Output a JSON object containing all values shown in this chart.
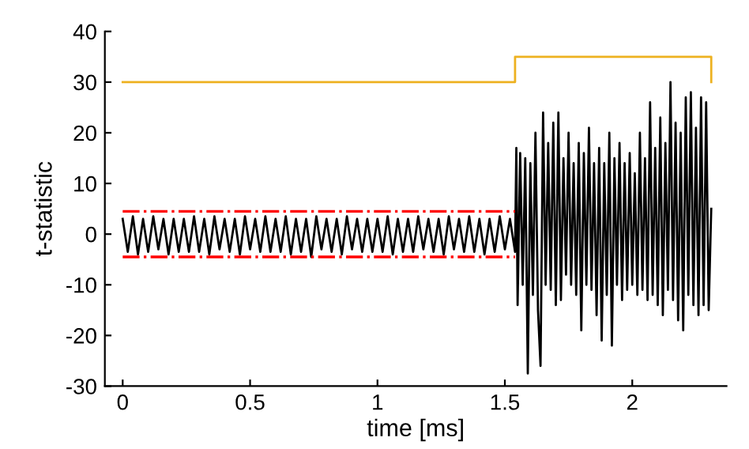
{
  "chart_data": {
    "type": "line",
    "xlabel": "time [ms]",
    "ylabel": "t-statistic",
    "xlim": [
      -0.07,
      2.37
    ],
    "ylim": [
      -30,
      40
    ],
    "xticks": [
      0,
      0.5,
      1,
      1.5,
      2
    ],
    "yticks": [
      -30,
      -20,
      -10,
      0,
      10,
      20,
      30,
      40
    ],
    "grid": false,
    "marker": "none",
    "series": [
      {
        "color": "#000000",
        "line_style": "solid",
        "x": [
          0,
          0.02,
          0.04,
          0.06,
          0.08,
          0.1,
          0.12,
          0.14,
          0.16,
          0.18,
          0.2,
          0.22,
          0.24,
          0.26,
          0.28,
          0.3,
          0.32,
          0.34,
          0.36,
          0.38,
          0.4,
          0.42,
          0.44,
          0.46,
          0.48,
          0.5,
          0.52,
          0.54,
          0.56,
          0.58,
          0.6,
          0.62,
          0.64,
          0.66,
          0.68,
          0.7,
          0.72,
          0.74,
          0.76,
          0.78,
          0.8,
          0.82,
          0.84,
          0.86,
          0.88,
          0.9,
          0.92,
          0.94,
          0.96,
          0.98,
          1.0,
          1.02,
          1.04,
          1.06,
          1.08,
          1.1,
          1.12,
          1.14,
          1.16,
          1.18,
          1.2,
          1.22,
          1.24,
          1.26,
          1.28,
          1.3,
          1.32,
          1.34,
          1.36,
          1.38,
          1.4,
          1.42,
          1.44,
          1.46,
          1.48,
          1.5,
          1.52,
          1.54,
          1.545,
          1.55,
          1.56,
          1.57,
          1.58,
          1.59,
          1.6,
          1.61,
          1.62,
          1.63,
          1.64,
          1.65,
          1.66,
          1.67,
          1.68,
          1.69,
          1.7,
          1.71,
          1.72,
          1.73,
          1.74,
          1.75,
          1.76,
          1.77,
          1.78,
          1.79,
          1.8,
          1.81,
          1.82,
          1.83,
          1.84,
          1.85,
          1.86,
          1.87,
          1.88,
          1.89,
          1.9,
          1.91,
          1.92,
          1.93,
          1.94,
          1.95,
          1.96,
          1.97,
          1.98,
          1.99,
          2.0,
          2.01,
          2.02,
          2.03,
          2.04,
          2.05,
          2.06,
          2.07,
          2.08,
          2.09,
          2.1,
          2.11,
          2.12,
          2.13,
          2.14,
          2.15,
          2.16,
          2.17,
          2.18,
          2.19,
          2.2,
          2.21,
          2.22,
          2.23,
          2.24,
          2.25,
          2.26,
          2.27,
          2.28,
          2.29,
          2.3,
          2.31
        ],
        "values": [
          3,
          -3.5,
          3.5,
          -4,
          3,
          -3.5,
          3.5,
          -3,
          3,
          -4,
          3,
          -3.5,
          3,
          -3.5,
          3.5,
          -3.5,
          3,
          -4,
          3.5,
          -3,
          3,
          -3.5,
          3,
          -4,
          3.5,
          -3,
          3,
          -3.5,
          3.5,
          -3.5,
          3,
          -3.5,
          3.5,
          -4,
          3,
          -3.5,
          3,
          -4.5,
          3.5,
          -3,
          3,
          -3.5,
          3,
          -4,
          3.5,
          -3,
          3,
          -3.5,
          3,
          -3.5,
          3,
          -3.5,
          3.5,
          -4,
          3,
          -3.5,
          3,
          -3.5,
          3.5,
          -3,
          3,
          -3.5,
          3,
          -4,
          3.5,
          -3,
          3,
          -3.5,
          3.5,
          -3.5,
          3,
          -4,
          3,
          -3.5,
          3.5,
          -3,
          3,
          -3.5,
          17,
          -14,
          16,
          -10,
          15,
          -27.5,
          14,
          -12,
          20,
          -15,
          -26,
          24,
          -10,
          18,
          -11,
          22,
          -14,
          24,
          -13,
          15,
          -8,
          20,
          -10,
          14,
          -12,
          18,
          -19,
          16,
          -10,
          21,
          -11,
          14,
          -16,
          17,
          -21,
          14,
          -12,
          20,
          -22,
          15,
          -10,
          18,
          -13,
          14,
          -11,
          16,
          -10,
          12,
          -12,
          20,
          -11,
          15,
          -13,
          26,
          -12,
          17,
          -14,
          23,
          -16,
          18,
          -11,
          30,
          -13,
          22,
          -17,
          20,
          -19,
          27,
          -12,
          28,
          -14,
          21,
          -16,
          27,
          -14,
          26,
          -15,
          5
        ]
      },
      {
        "color": "#edb120",
        "line_style": "solid",
        "x": [
          0,
          1.54,
          1.54,
          2.31,
          2.31
        ],
        "values": [
          30,
          30,
          35,
          35,
          30
        ]
      },
      {
        "color": "#ff0000",
        "line_style": "dashdot",
        "x": [
          0,
          1.54
        ],
        "values": [
          4.5,
          4.5
        ]
      },
      {
        "color": "#ff0000",
        "line_style": "dashdot",
        "x": [
          0,
          1.54
        ],
        "values": [
          -4.5,
          -4.5
        ]
      }
    ]
  }
}
